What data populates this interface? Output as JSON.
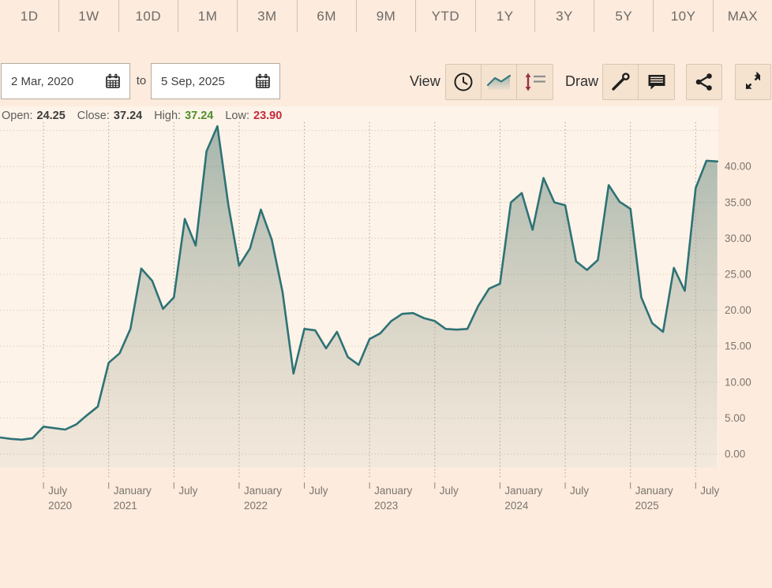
{
  "tabs": [
    "1D",
    "1W",
    "10D",
    "1M",
    "3M",
    "6M",
    "9M",
    "YTD",
    "1Y",
    "3Y",
    "5Y",
    "10Y",
    "MAX"
  ],
  "controls": {
    "date_from": "2 Mar, 2020",
    "to_label": "to",
    "date_to": "5 Sep, 2025",
    "view_label": "View",
    "draw_label": "Draw",
    "view_buttons": [
      "intraday-clock",
      "line-area-chart",
      "high-low-bars"
    ],
    "draw_buttons": [
      "trend-line",
      "annotation"
    ],
    "extra_buttons": [
      "share",
      "fullscreen"
    ]
  },
  "ohlc": {
    "open_label": "Open:",
    "open": "24.25",
    "close_label": "Close:",
    "close": "37.24",
    "high_label": "High:",
    "high": "37.24",
    "low_label": "Low:",
    "low": "23.90",
    "high_color": "#4f8f2a",
    "low_color": "#c42b3a"
  },
  "colors": {
    "page_bg": "#fdebdd",
    "plot_bg": "#fdf3e8",
    "line": "#2e7276",
    "fill_top": "rgba(47,99,92,0.42)",
    "fill_bottom": "rgba(125,120,85,0.08)",
    "h_grid": "#dccdbb",
    "v_grid": "#a79e92",
    "tick": "#8b857e",
    "axis_text": "#7b756e",
    "button_bg": "#f5e3d0",
    "button_border": "#d9c6b2"
  },
  "chart_data": {
    "type": "area",
    "title": "",
    "x_unit": "monthly from 2 Mar 2020 to 5 Sep 2025",
    "legend": "none",
    "grid": true,
    "y_axis_position": "right",
    "ylim": [
      0,
      46
    ],
    "y_ticks": [
      0,
      5,
      10,
      15,
      20,
      25,
      30,
      35,
      40
    ],
    "y_tick_labels": [
      "0.00",
      "5.00",
      "10.00",
      "15.00",
      "20.00",
      "25.00",
      "30.00",
      "35.00",
      "40.00"
    ],
    "x_ticks": [
      {
        "month_index": 4,
        "line1": "July",
        "line2": "2020"
      },
      {
        "month_index": 10,
        "line1": "January",
        "line2": "2021"
      },
      {
        "month_index": 16,
        "line1": "July",
        "line2": ""
      },
      {
        "month_index": 22,
        "line1": "January",
        "line2": "2022"
      },
      {
        "month_index": 28,
        "line1": "July",
        "line2": ""
      },
      {
        "month_index": 34,
        "line1": "January",
        "line2": "2023"
      },
      {
        "month_index": 40,
        "line1": "July",
        "line2": ""
      },
      {
        "month_index": 46,
        "line1": "January",
        "line2": "2024"
      },
      {
        "month_index": 52,
        "line1": "July",
        "line2": ""
      },
      {
        "month_index": 58,
        "line1": "January",
        "line2": "2025"
      },
      {
        "month_index": 64,
        "line1": "July",
        "line2": ""
      }
    ],
    "series": [
      {
        "name": "price",
        "start": "2020-03",
        "values": [
          2.3,
          2.1,
          2.0,
          2.2,
          3.8,
          3.6,
          3.4,
          4.1,
          5.4,
          6.6,
          12.7,
          14.0,
          17.4,
          25.8,
          24.1,
          20.2,
          21.8,
          32.7,
          29.0,
          42.1,
          45.6,
          34.7,
          26.2,
          28.6,
          34.0,
          29.8,
          22.5,
          11.2,
          17.4,
          17.2,
          14.7,
          17.0,
          13.5,
          12.4,
          16.0,
          16.8,
          18.5,
          19.5,
          19.6,
          18.9,
          18.5,
          17.4,
          17.3,
          17.4,
          20.6,
          23.0,
          23.7,
          35.0,
          36.3,
          31.2,
          38.4,
          35.0,
          34.6,
          26.8,
          25.6,
          27.0,
          37.4,
          35.1,
          34.1,
          21.8,
          18.2,
          17.0,
          25.9,
          22.7,
          37.0,
          40.8,
          40.7
        ]
      }
    ]
  }
}
